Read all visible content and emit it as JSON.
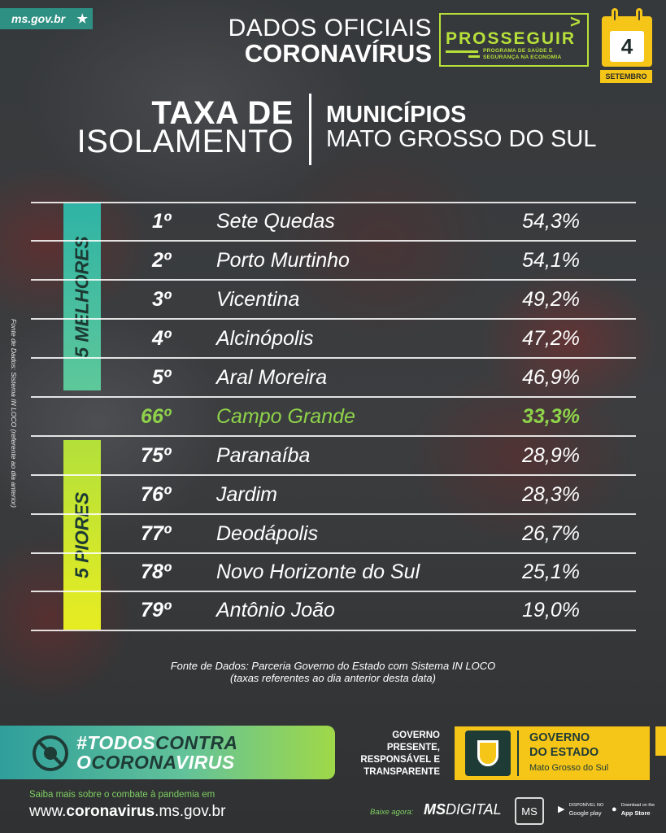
{
  "header": {
    "site_tag": "ms.gov.br",
    "line1": "DADOS OFICIAIS",
    "line2": "CORONAVÍRUS",
    "program_title": "PROSSEGUIR",
    "program_subtitle": "PROGRAMA DE SAÚDE E SEGURANÇA NA ECONOMIA",
    "day": "4",
    "month": "SETEMBRO"
  },
  "title": {
    "left_bold": "TAXA DE",
    "left_regular": "ISOLAMENTO",
    "right_bold": "MUNICÍPIOS",
    "right_regular": "MATO GROSSO DO SUL"
  },
  "bands": {
    "best": "5 MELHORES",
    "worst": "5 PIORES"
  },
  "rows": [
    {
      "rank": "1º",
      "city": "Sete Quedas",
      "pct": "54,3%"
    },
    {
      "rank": "2º",
      "city": "Porto Murtinho",
      "pct": "54,1%"
    },
    {
      "rank": "3º",
      "city": "Vicentina",
      "pct": "49,2%"
    },
    {
      "rank": "4º",
      "city": "Alcinópolis",
      "pct": "47,2%"
    },
    {
      "rank": "5º",
      "city": "Aral Moreira",
      "pct": "46,9%"
    },
    {
      "rank": "66º",
      "city": "Campo Grande",
      "pct": "33,3%"
    },
    {
      "rank": "75º",
      "city": "Paranaíba",
      "pct": "28,9%"
    },
    {
      "rank": "76º",
      "city": "Jardim",
      "pct": "28,3%"
    },
    {
      "rank": "77º",
      "city": "Deodápolis",
      "pct": "26,7%"
    },
    {
      "rank": "78º",
      "city": "Novo Horizonte do Sul",
      "pct": "25,1%"
    },
    {
      "rank": "79º",
      "city": "Antônio João",
      "pct": "19,0%"
    }
  ],
  "side_source": "Fonte de Dados: Sistema IN LOCO (referente ao dia anterior)",
  "source_line1": "Fonte de Dados: Parceria Governo do Estado com Sistema IN LOCO",
  "source_line2": "(taxas referentes ao dia anterior desta data)",
  "footer": {
    "campaign_line1_a": "#TODOS",
    "campaign_line1_b": "CONTRA",
    "campaign_line2_a": "O",
    "campaign_line2_b": "CORONA",
    "campaign_line2_c": "VIRUS",
    "gov_slogan_1": "GOVERNO",
    "gov_slogan_2": "PRESENTE,",
    "gov_slogan_3": "RESPONSÁVEL E",
    "gov_slogan_4": "TRANSPARENTE",
    "gov_name_1": "GOVERNO",
    "gov_name_2": "DO ESTADO",
    "gov_name_3": "Mato Grosso do Sul",
    "saiba": "Saiba mais sobre o combate à pandemia em",
    "site_prefix": "www.",
    "site_bold": "coronavirus",
    "site_suffix": ".ms.gov.br",
    "baixe": "Baixe agora:",
    "app_name_bold": "MS",
    "app_name_regular": "DIGITAL",
    "app_logo": "MS",
    "gplay_small": "DISPONÍVEL NO",
    "gplay_big": "Google play",
    "appstore_small": "Download on the",
    "appstore_big": "App Store"
  },
  "colors": {
    "highlight_green": "#8fd34a",
    "best_band": "#2fb3a5",
    "worst_band": "#e7ec22",
    "program_green": "#b7e13a",
    "calendar_yellow": "#f5c518"
  }
}
